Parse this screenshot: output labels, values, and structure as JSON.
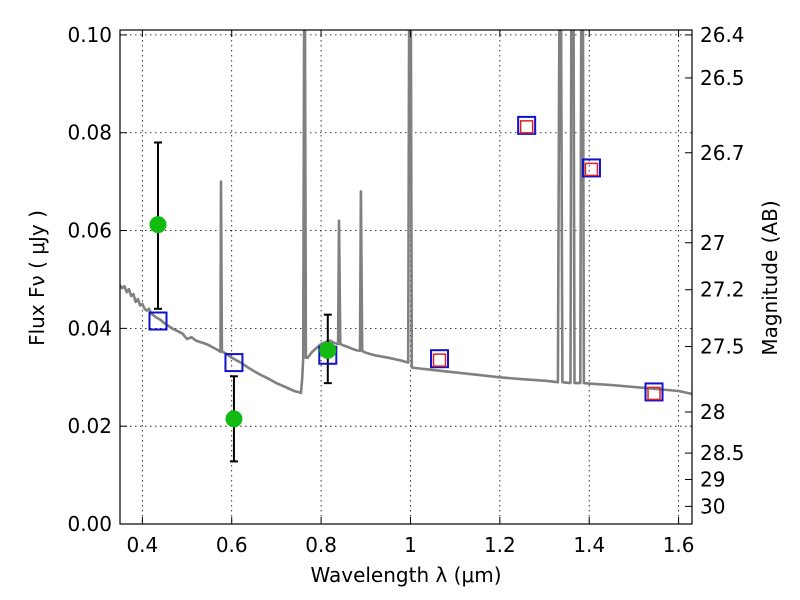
{
  "chart_data": {
    "type": "scatter",
    "xlabel": "Wavelength  λ (μm)",
    "ylabel": "Flux  Fν  ( μJy )",
    "y2label": "Magnitude (AB)",
    "xlim": [
      0.35,
      1.63
    ],
    "ylim": [
      0.0,
      0.101
    ],
    "grid": true,
    "x_ticks": [
      0.4,
      0.6,
      0.8,
      1.0,
      1.2,
      1.4,
      1.6
    ],
    "x_tick_labels": [
      "0.4",
      "0.6",
      "0.8",
      "1",
      "1.2",
      "1.4",
      "1.6"
    ],
    "y_ticks": [
      0.0,
      0.02,
      0.04,
      0.06,
      0.08,
      0.1
    ],
    "y_tick_labels": [
      "0.00",
      "0.02",
      "0.04",
      "0.06",
      "0.08",
      "0.10"
    ],
    "mag_ticks": [
      {
        "label": "26.4",
        "flux": 0.1
      },
      {
        "label": "26.5",
        "flux": 0.0912
      },
      {
        "label": "26.7",
        "flux": 0.0759
      },
      {
        "label": "27",
        "flux": 0.0575
      },
      {
        "label": "27.2",
        "flux": 0.0479
      },
      {
        "label": "27.5",
        "flux": 0.0363
      },
      {
        "label": "28",
        "flux": 0.0229
      },
      {
        "label": "28.5",
        "flux": 0.0145
      },
      {
        "label": "29",
        "flux": 0.0091
      },
      {
        "label": "30",
        "flux": 0.0036
      }
    ],
    "colors": {
      "model": "#808080",
      "observed": "#11bb11",
      "model_phot": "#1111cc",
      "inner_phot": "#dd2222",
      "errorbar": "#000000"
    },
    "model_spectrum": [
      [
        0.35,
        0.0488
      ],
      [
        0.355,
        0.0482
      ],
      [
        0.36,
        0.0486
      ],
      [
        0.365,
        0.0474
      ],
      [
        0.37,
        0.048
      ],
      [
        0.375,
        0.0466
      ],
      [
        0.38,
        0.047
      ],
      [
        0.385,
        0.0454
      ],
      [
        0.39,
        0.046
      ],
      [
        0.395,
        0.0447
      ],
      [
        0.4,
        0.045
      ],
      [
        0.405,
        0.044
      ],
      [
        0.41,
        0.0436
      ],
      [
        0.415,
        0.044
      ],
      [
        0.42,
        0.043
      ],
      [
        0.43,
        0.0423
      ],
      [
        0.44,
        0.0418
      ],
      [
        0.45,
        0.041
      ],
      [
        0.46,
        0.0404
      ],
      [
        0.47,
        0.0398
      ],
      [
        0.48,
        0.0394
      ],
      [
        0.49,
        0.0389
      ],
      [
        0.5,
        0.0378
      ],
      [
        0.51,
        0.0382
      ],
      [
        0.52,
        0.0375
      ],
      [
        0.53,
        0.0372
      ],
      [
        0.54,
        0.0369
      ],
      [
        0.55,
        0.0365
      ],
      [
        0.56,
        0.036
      ],
      [
        0.57,
        0.0355
      ],
      [
        0.575,
        0.0352
      ],
      [
        0.576,
        0.07
      ],
      [
        0.578,
        0.0352
      ],
      [
        0.585,
        0.035
      ],
      [
        0.6,
        0.034
      ],
      [
        0.62,
        0.033
      ],
      [
        0.64,
        0.0318
      ],
      [
        0.66,
        0.0307
      ],
      [
        0.68,
        0.0298
      ],
      [
        0.7,
        0.0288
      ],
      [
        0.72,
        0.028
      ],
      [
        0.74,
        0.0272
      ],
      [
        0.755,
        0.0268
      ],
      [
        0.758,
        0.03
      ],
      [
        0.76,
        0.034
      ],
      [
        0.762,
        0.101
      ],
      [
        0.764,
        0.101
      ],
      [
        0.766,
        0.034
      ],
      [
        0.77,
        0.034
      ],
      [
        0.78,
        0.0352
      ],
      [
        0.79,
        0.036
      ],
      [
        0.8,
        0.0368
      ],
      [
        0.81,
        0.0372
      ],
      [
        0.82,
        0.0375
      ],
      [
        0.83,
        0.037
      ],
      [
        0.838,
        0.0368
      ],
      [
        0.84,
        0.062
      ],
      [
        0.843,
        0.0368
      ],
      [
        0.85,
        0.0365
      ],
      [
        0.86,
        0.0362
      ],
      [
        0.87,
        0.0358
      ],
      [
        0.88,
        0.0355
      ],
      [
        0.887,
        0.0354
      ],
      [
        0.889,
        0.068
      ],
      [
        0.892,
        0.0354
      ],
      [
        0.9,
        0.035
      ],
      [
        0.92,
        0.0345
      ],
      [
        0.95,
        0.034
      ],
      [
        0.98,
        0.0334
      ],
      [
        0.995,
        0.033
      ],
      [
        0.997,
        0.101
      ],
      [
        1.001,
        0.101
      ],
      [
        1.003,
        0.032
      ],
      [
        1.02,
        0.0318
      ],
      [
        1.05,
        0.0315
      ],
      [
        1.08,
        0.0312
      ],
      [
        1.1,
        0.031
      ],
      [
        1.15,
        0.0305
      ],
      [
        1.2,
        0.03
      ],
      [
        1.25,
        0.0296
      ],
      [
        1.3,
        0.0293
      ],
      [
        1.33,
        0.029
      ],
      [
        1.333,
        0.101
      ],
      [
        1.337,
        0.101
      ],
      [
        1.34,
        0.029
      ],
      [
        1.358,
        0.0288
      ],
      [
        1.36,
        0.101
      ],
      [
        1.365,
        0.101
      ],
      [
        1.367,
        0.0288
      ],
      [
        1.38,
        0.0288
      ],
      [
        1.382,
        0.101
      ],
      [
        1.386,
        0.101
      ],
      [
        1.388,
        0.0288
      ],
      [
        1.4,
        0.0287
      ],
      [
        1.45,
        0.0284
      ],
      [
        1.5,
        0.028
      ],
      [
        1.55,
        0.0276
      ],
      [
        1.6,
        0.0272
      ],
      [
        1.63,
        0.0266
      ]
    ],
    "observed": [
      {
        "x": 0.435,
        "y": 0.0612,
        "err_low": 0.044,
        "err_high": 0.078
      },
      {
        "x": 0.605,
        "y": 0.0215,
        "err_low": 0.0128,
        "err_high": 0.0302
      },
      {
        "x": 0.815,
        "y": 0.0355,
        "err_low": 0.0288,
        "err_high": 0.0428
      }
    ],
    "model_photometry": [
      {
        "x": 0.435,
        "y": 0.0415
      },
      {
        "x": 0.605,
        "y": 0.033
      },
      {
        "x": 0.815,
        "y": 0.0345
      },
      {
        "x": 1.065,
        "y": 0.0338
      },
      {
        "x": 1.26,
        "y": 0.0815
      },
      {
        "x": 1.405,
        "y": 0.0728
      },
      {
        "x": 1.545,
        "y": 0.027
      }
    ],
    "inner_photometry": [
      {
        "x": 1.065,
        "y": 0.0335
      },
      {
        "x": 1.26,
        "y": 0.0812
      },
      {
        "x": 1.405,
        "y": 0.0725
      },
      {
        "x": 1.545,
        "y": 0.0267
      }
    ]
  }
}
